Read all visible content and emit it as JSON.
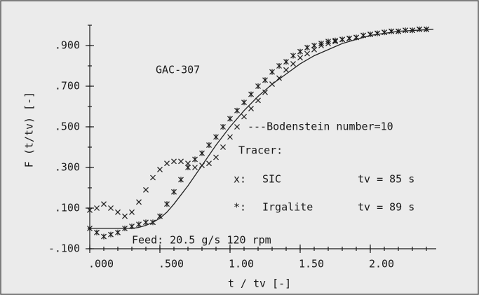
{
  "chart_data": {
    "type": "scatter",
    "title": "GAC-307",
    "x_label": "t / tv [-]",
    "y_label": "F (t/tv) [-]",
    "xlim": [
      0,
      2.45
    ],
    "ylim": [
      -0.1,
      1.0
    ],
    "xticks": [
      {
        "value": 0,
        "label": ".000"
      },
      {
        "value": 0.5,
        "label": ".500"
      },
      {
        "value": 1.0,
        "label": "1.00"
      },
      {
        "value": 1.5,
        "label": "1.50"
      },
      {
        "value": 2.0,
        "label": "2.00"
      }
    ],
    "yticks": [
      {
        "value": -0.1,
        "label": "-.100"
      },
      {
        "value": 0.1,
        "label": ".100"
      },
      {
        "value": 0.3,
        "label": ".300"
      },
      {
        "value": 0.5,
        "label": ".500"
      },
      {
        "value": 0.7,
        "label": ".700"
      },
      {
        "value": 0.9,
        "label": ".900"
      }
    ],
    "minor_tick_step": 0.1,
    "legend_title": "Tracer:",
    "annotations": [
      "---Bodenstein number=10",
      "Feed:  20.5 g/s    120 rpm"
    ],
    "series": [
      {
        "name": "SIC",
        "marker": "x",
        "marker_label": "x:",
        "note": "tv  =  85 s",
        "color": "#222",
        "x": [
          0,
          0.05,
          0.1,
          0.15,
          0.2,
          0.25,
          0.3,
          0.35,
          0.4,
          0.45,
          0.5,
          0.55,
          0.6,
          0.65,
          0.7,
          0.75,
          0.8,
          0.85,
          0.9,
          0.95,
          1.0,
          1.05,
          1.1,
          1.15,
          1.2,
          1.25,
          1.3,
          1.35,
          1.4,
          1.45,
          1.5,
          1.55,
          1.6,
          1.65,
          1.7,
          1.75,
          1.8,
          1.85,
          1.9,
          1.95,
          2.0,
          2.05,
          2.1,
          2.15,
          2.2,
          2.25,
          2.3,
          2.35,
          2.4
        ],
        "values": [
          0.09,
          0.1,
          0.12,
          0.1,
          0.08,
          0.06,
          0.08,
          0.13,
          0.19,
          0.25,
          0.29,
          0.32,
          0.33,
          0.33,
          0.32,
          0.3,
          0.31,
          0.32,
          0.35,
          0.4,
          0.45,
          0.5,
          0.55,
          0.59,
          0.63,
          0.67,
          0.71,
          0.74,
          0.78,
          0.81,
          0.84,
          0.86,
          0.88,
          0.9,
          0.91,
          0.92,
          0.93,
          0.935,
          0.94,
          0.95,
          0.955,
          0.96,
          0.965,
          0.97,
          0.97,
          0.975,
          0.975,
          0.98,
          0.98
        ]
      },
      {
        "name": "Irgalite",
        "marker": "star",
        "marker_label": "*:",
        "note": "tv  =  89 s",
        "color": "#222",
        "x": [
          0,
          0.05,
          0.1,
          0.15,
          0.2,
          0.25,
          0.3,
          0.35,
          0.4,
          0.45,
          0.5,
          0.55,
          0.6,
          0.65,
          0.7,
          0.75,
          0.8,
          0.85,
          0.9,
          0.95,
          1.0,
          1.05,
          1.1,
          1.15,
          1.2,
          1.25,
          1.3,
          1.35,
          1.4,
          1.45,
          1.5,
          1.55,
          1.6,
          1.65,
          1.7,
          1.75,
          1.8,
          1.85,
          1.9,
          1.95,
          2.0,
          2.05,
          2.1,
          2.15,
          2.2,
          2.25,
          2.3,
          2.35,
          2.4
        ],
        "values": [
          0.0,
          -0.02,
          -0.04,
          -0.03,
          -0.02,
          0.0,
          0.01,
          0.02,
          0.03,
          0.03,
          0.06,
          0.12,
          0.18,
          0.24,
          0.3,
          0.34,
          0.37,
          0.41,
          0.45,
          0.5,
          0.54,
          0.58,
          0.62,
          0.66,
          0.7,
          0.73,
          0.77,
          0.8,
          0.82,
          0.85,
          0.87,
          0.89,
          0.9,
          0.91,
          0.92,
          0.925,
          0.93,
          0.935,
          0.94,
          0.95,
          0.955,
          0.96,
          0.965,
          0.97,
          0.97,
          0.975,
          0.975,
          0.98,
          0.98
        ]
      },
      {
        "marker": "line",
        "color": "#222",
        "x": [
          0,
          0.1,
          0.2,
          0.3,
          0.35,
          0.4,
          0.45,
          0.5,
          0.55,
          0.6,
          0.7,
          0.8,
          0.9,
          1.0,
          1.1,
          1.2,
          1.3,
          1.4,
          1.5,
          1.6,
          1.8,
          2.0,
          2.2,
          2.45
        ],
        "values": [
          0,
          0,
          0,
          0,
          0.005,
          0.015,
          0.03,
          0.05,
          0.08,
          0.12,
          0.21,
          0.31,
          0.41,
          0.5,
          0.58,
          0.65,
          0.71,
          0.76,
          0.81,
          0.85,
          0.91,
          0.95,
          0.97,
          0.98
        ]
      }
    ]
  }
}
